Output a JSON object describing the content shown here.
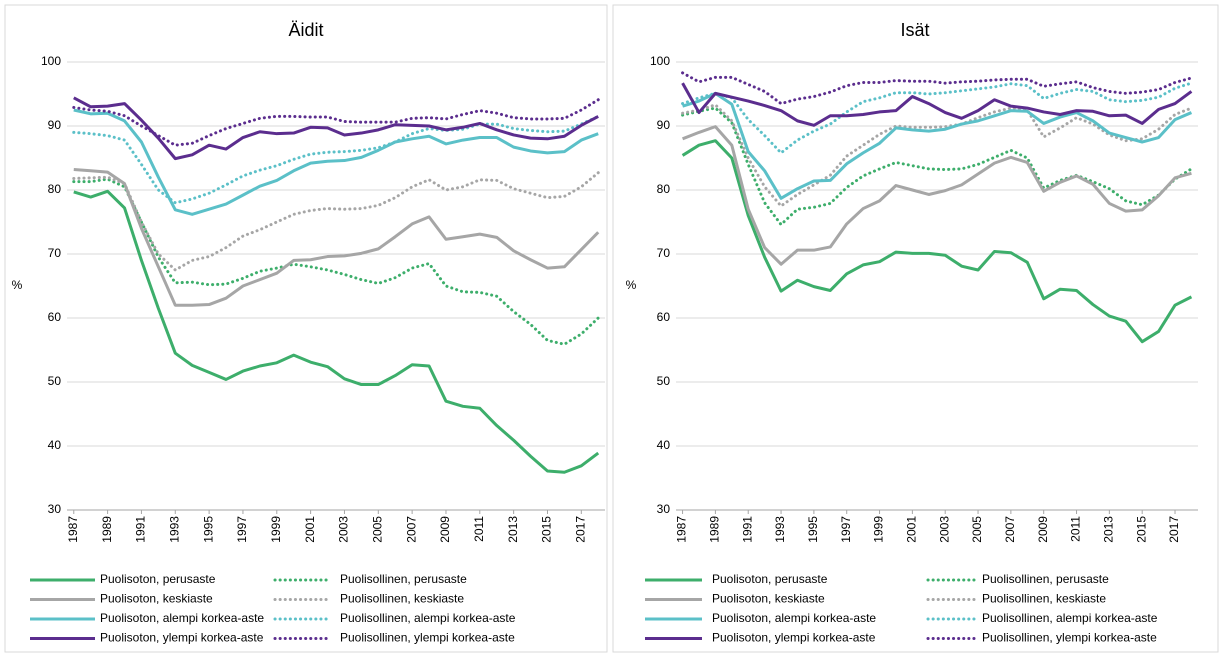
{
  "chart_data": [
    {
      "type": "line",
      "title": "Äidit",
      "ylabel": "%",
      "x": [
        1987,
        1988,
        1989,
        1990,
        1991,
        1992,
        1993,
        1994,
        1995,
        1996,
        1997,
        1998,
        1999,
        2000,
        2001,
        2002,
        2003,
        2004,
        2005,
        2006,
        2007,
        2008,
        2009,
        2010,
        2011,
        2012,
        2013,
        2014,
        2015,
        2016,
        2017,
        2018
      ],
      "xticks": [
        1987,
        1989,
        1991,
        1993,
        1995,
        1997,
        1999,
        2001,
        2003,
        2005,
        2007,
        2009,
        2011,
        2013,
        2015,
        2017
      ],
      "xlim": [
        1986.6,
        2018.4
      ],
      "ylim": [
        30,
        100
      ],
      "yticks": [
        30,
        40,
        50,
        60,
        70,
        80,
        90,
        100
      ],
      "grid": true,
      "series": [
        {
          "name": "Puolisoton, perusaste",
          "color": "#3dae6b",
          "style": "solid",
          "values": [
            79.7,
            78.9,
            79.8,
            77.2,
            69,
            61.5,
            54.5,
            52.6,
            51.5,
            50.4,
            51.7,
            52.5,
            53,
            54.2,
            53.1,
            52.4,
            50.5,
            49.6,
            49.6,
            51,
            52.7,
            52.5,
            47,
            46.2,
            45.9,
            43.2,
            40.9,
            38.4,
            36.1,
            35.9,
            36.9,
            38.9
          ]
        },
        {
          "name": "Puolisollinen, perusaste",
          "color": "#3dae6b",
          "style": "dotted",
          "values": [
            81.3,
            81.3,
            81.7,
            80.5,
            75,
            69.5,
            65.5,
            65.6,
            65.2,
            65.3,
            66.2,
            67.3,
            67.8,
            68.4,
            68,
            67.5,
            66.8,
            66,
            65.4,
            66.3,
            67.8,
            68.5,
            65,
            64.1,
            64,
            63.4,
            61,
            59,
            56.5,
            55.9,
            57.5,
            60
          ]
        },
        {
          "name": "Puolisoton, keskiaste",
          "color": "#a6a6a6",
          "style": "solid",
          "values": [
            83.2,
            83,
            82.8,
            81,
            74,
            68,
            62,
            62,
            62.1,
            63.1,
            65,
            66,
            67,
            69,
            69.1,
            69.6,
            69.7,
            70.1,
            70.8,
            72.7,
            74.7,
            75.8,
            72.3,
            72.7,
            73.1,
            72.6,
            70.5,
            69.1,
            67.8,
            68,
            70.7,
            73.4
          ]
        },
        {
          "name": "Puolisollinen, keskiaste",
          "color": "#a6a6a6",
          "style": "dotted",
          "values": [
            81.8,
            81.9,
            82,
            81,
            75,
            70,
            67.5,
            69,
            69.6,
            71,
            72.8,
            73.8,
            75,
            76.2,
            76.8,
            77.1,
            77,
            77.1,
            77.6,
            78.8,
            80.5,
            81.6,
            80,
            80.5,
            81.6,
            81.5,
            80.2,
            79.5,
            78.8,
            79,
            80.5,
            82.7
          ]
        },
        {
          "name": "Puolisoton, alempi korkea-aste",
          "color": "#5bc0c8",
          "style": "solid",
          "values": [
            92.5,
            91.9,
            92,
            90.8,
            87.5,
            82,
            76.9,
            76.2,
            77,
            77.8,
            79.2,
            80.6,
            81.5,
            83,
            84.2,
            84.5,
            84.6,
            85.1,
            86.2,
            87.5,
            88,
            88.4,
            87.2,
            87.8,
            88.2,
            88.2,
            86.7,
            86.1,
            85.8,
            86,
            87.8,
            88.8
          ]
        },
        {
          "name": "Puolisollinen, alempi korkea-aste",
          "color": "#5bc0c8",
          "style": "dotted",
          "values": [
            89,
            88.8,
            88.5,
            87.8,
            84,
            80,
            78,
            78.6,
            79.5,
            80.8,
            82.2,
            83.1,
            83.8,
            84.8,
            85.6,
            85.9,
            86,
            86.2,
            86.6,
            87.5,
            88.8,
            89.6,
            89.3,
            89.5,
            90.3,
            90.3,
            89.6,
            89.3,
            89.1,
            89.2,
            90.3,
            91.5
          ]
        },
        {
          "name": "Puolisoton, ylempi korkea-aste",
          "color": "#5b2d8e",
          "style": "solid",
          "values": [
            94.4,
            93,
            93.1,
            93.5,
            90.9,
            88.1,
            84.9,
            85.5,
            87,
            86.4,
            88.2,
            89.1,
            88.8,
            88.9,
            89.8,
            89.7,
            88.6,
            88.9,
            89.4,
            90.2,
            90.1,
            90,
            89.4,
            89.8,
            90.4,
            89.4,
            88.6,
            88.1,
            88,
            88.4,
            90.1,
            91.5
          ]
        },
        {
          "name": "Puolisollinen, ylempi korkea-aste",
          "color": "#5b2d8e",
          "style": "dotted",
          "values": [
            92.9,
            92.5,
            92.3,
            91.6,
            90,
            88.5,
            87,
            87.3,
            88.5,
            89.6,
            90.4,
            91.2,
            91.5,
            91.5,
            91.4,
            91.4,
            90.7,
            90.6,
            90.6,
            90.6,
            91.2,
            91.3,
            91.1,
            91.8,
            92.4,
            92,
            91.3,
            91.1,
            91.1,
            91.2,
            92.5,
            94.1
          ]
        }
      ]
    },
    {
      "type": "line",
      "title": "Isät",
      "ylabel": "%",
      "x": [
        1987,
        1988,
        1989,
        1990,
        1991,
        1992,
        1993,
        1994,
        1995,
        1996,
        1997,
        1998,
        1999,
        2000,
        2001,
        2002,
        2003,
        2004,
        2005,
        2006,
        2007,
        2008,
        2009,
        2010,
        2011,
        2012,
        2013,
        2014,
        2015,
        2016,
        2017,
        2018
      ],
      "xticks": [
        1987,
        1989,
        1991,
        1993,
        1995,
        1997,
        1999,
        2001,
        2003,
        2005,
        2007,
        2009,
        2011,
        2013,
        2015,
        2017
      ],
      "xlim": [
        1986.6,
        2018.4
      ],
      "ylim": [
        30,
        100
      ],
      "yticks": [
        30,
        40,
        50,
        60,
        70,
        80,
        90,
        100
      ],
      "grid": true,
      "series": [
        {
          "name": "Puolisoton, perusaste",
          "color": "#3dae6b",
          "style": "solid",
          "values": [
            85.4,
            87,
            87.7,
            85,
            76,
            69.5,
            64.2,
            65.9,
            64.9,
            64.3,
            66.9,
            68.3,
            68.8,
            70.3,
            70.1,
            70.1,
            69.8,
            68.1,
            67.5,
            70.4,
            70.2,
            68.7,
            63,
            64.5,
            64.3,
            62.1,
            60.3,
            59.5,
            56.3,
            57.9,
            62,
            63.3
          ]
        },
        {
          "name": "Puolisollinen, perusaste",
          "color": "#3dae6b",
          "style": "dotted",
          "values": [
            91.7,
            92.3,
            92.8,
            90.5,
            84,
            78,
            74.6,
            77,
            77.3,
            77.9,
            80.4,
            82.2,
            83.3,
            84.3,
            83.8,
            83.3,
            83.2,
            83.3,
            84,
            85.1,
            86.2,
            85,
            80.3,
            81.5,
            82.3,
            81.3,
            80.2,
            78.3,
            77.7,
            79.2,
            81.7,
            83.3
          ]
        },
        {
          "name": "Puolisoton, keskiaste",
          "color": "#a6a6a6",
          "style": "solid",
          "values": [
            88,
            89,
            89.9,
            87,
            77,
            71,
            68.4,
            70.6,
            70.6,
            71.1,
            74.7,
            77.1,
            78.3,
            80.7,
            80,
            79.3,
            79.9,
            80.8,
            82.5,
            84.2,
            85.1,
            84.3,
            79.8,
            81.2,
            82.2,
            80.9,
            77.9,
            76.7,
            76.9,
            79.1,
            81.9,
            82.6
          ]
        },
        {
          "name": "Puolisollinen, keskiaste",
          "color": "#a6a6a6",
          "style": "dotted",
          "values": [
            92,
            92.5,
            93.3,
            90.8,
            85,
            80.5,
            77.5,
            79.3,
            80.8,
            82.3,
            85.3,
            87,
            88.7,
            90,
            89.8,
            89.8,
            89.9,
            90.3,
            91.3,
            92.2,
            92.8,
            92.5,
            88.3,
            89.7,
            91.3,
            90.3,
            88.6,
            87.7,
            88,
            89.5,
            91.8,
            92.8
          ]
        },
        {
          "name": "Puolisoton, alempi korkea-aste",
          "color": "#5bc0c8",
          "style": "solid",
          "values": [
            93.1,
            93.9,
            95.1,
            93.4,
            86,
            83,
            78.7,
            80.2,
            81.4,
            81.5,
            84.1,
            85.8,
            87.3,
            89.7,
            89.4,
            89.2,
            89.5,
            90.3,
            90.8,
            91.6,
            92.4,
            92.3,
            90.4,
            91.4,
            92.1,
            90.8,
            88.9,
            88.2,
            87.5,
            88.2,
            91,
            92.1
          ]
        },
        {
          "name": "Puolisollinen, alempi korkea-aste",
          "color": "#5bc0c8",
          "style": "dotted",
          "values": [
            93.5,
            94.4,
            95.1,
            94.4,
            91,
            88.5,
            85.8,
            87.8,
            89.2,
            90.3,
            92.2,
            93.8,
            94.4,
            95.2,
            95.2,
            95,
            95.2,
            95.5,
            95.8,
            96.1,
            96.6,
            96.3,
            94.3,
            95.1,
            95.7,
            95.4,
            94.1,
            93.8,
            94,
            94.5,
            95.9,
            96.7
          ]
        },
        {
          "name": "Puolisoton, ylempi korkea-aste",
          "color": "#5b2d8e",
          "style": "solid",
          "values": [
            96.7,
            92.1,
            95.1,
            94.5,
            93.9,
            93.2,
            92.4,
            90.8,
            90.1,
            91.6,
            91.6,
            91.8,
            92.2,
            92.4,
            94.6,
            93.5,
            92.1,
            91.2,
            92.4,
            94.1,
            93.1,
            92.8,
            92.2,
            91.8,
            92.4,
            92.3,
            91.6,
            91.7,
            90.4,
            92.6,
            93.5,
            95.4
          ]
        },
        {
          "name": "Puolisollinen, ylempi korkea-aste",
          "color": "#5b2d8e",
          "style": "dotted",
          "values": [
            98.3,
            96.9,
            97.6,
            97.6,
            96.5,
            95.4,
            93.5,
            94.2,
            94.6,
            95.3,
            96.3,
            96.8,
            96.8,
            97.1,
            97,
            97,
            96.7,
            96.9,
            97,
            97.2,
            97.3,
            97.3,
            96.2,
            96.6,
            96.9,
            96,
            95.4,
            95.1,
            95.3,
            95.7,
            96.8,
            97.5
          ]
        }
      ]
    }
  ]
}
